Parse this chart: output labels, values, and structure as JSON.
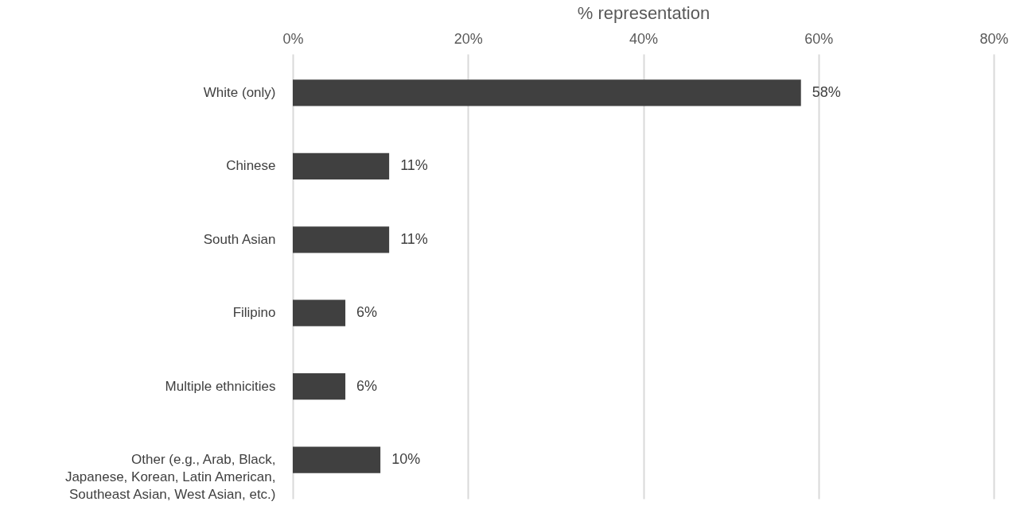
{
  "chart_data": {
    "type": "bar",
    "orientation": "horizontal",
    "xlabel": "% representation",
    "categories": [
      "White (only)",
      "Chinese",
      "South Asian",
      "Filipino",
      "Multiple ethnicities",
      "Other (e.g., Arab, Black, Japanese, Korean, Latin American, Southeast Asian, West Asian, etc.)"
    ],
    "values": [
      58,
      11,
      11,
      6,
      6,
      10
    ],
    "value_labels": [
      "58%",
      "11%",
      "11%",
      "6%",
      "6%",
      "10%"
    ],
    "color": "#404040",
    "xlim": [
      0,
      80
    ],
    "xticks": [
      {
        "value": 0,
        "label": "0%"
      },
      {
        "value": 20,
        "label": "20%"
      },
      {
        "value": 40,
        "label": "40%"
      },
      {
        "value": 60,
        "label": "60%"
      },
      {
        "value": 80,
        "label": "80%"
      }
    ],
    "grid": "x"
  }
}
